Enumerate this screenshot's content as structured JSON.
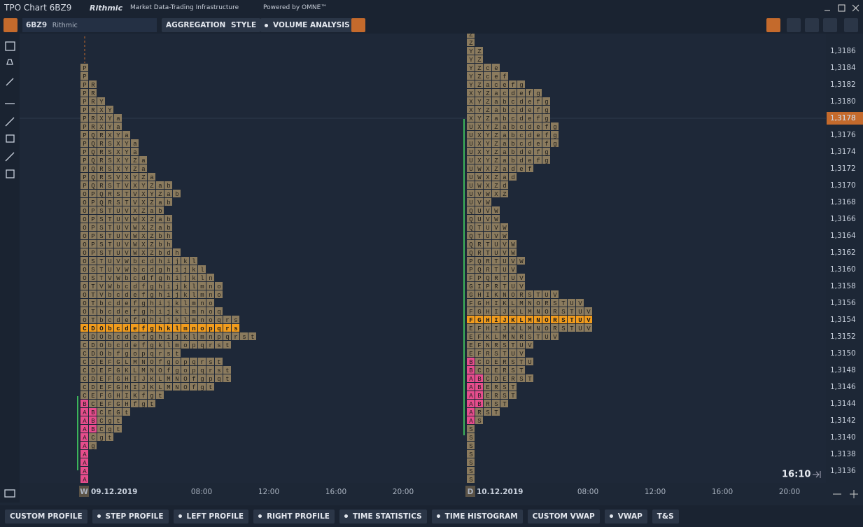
{
  "window": {
    "title": "TPO Chart 6BZ9",
    "brand": "Rithmic",
    "tagline": "Market Data-Trading Infrastructure",
    "powered": "Powered by OMNE™"
  },
  "toolbar": {
    "symbol": "6BZ9",
    "feed": "Rithmic",
    "buttons": [
      "AGGREGATION",
      "STYLE",
      "VOLUME ANALYSIS"
    ]
  },
  "price_axis": {
    "labels": [
      "1,3186",
      "1,3184",
      "1,3182",
      "1,3180",
      "1,3178",
      "1,3176",
      "1,3174",
      "1,3172",
      "1,3170",
      "1,3168",
      "1,3166",
      "1,3164",
      "1,3162",
      "1,3160",
      "1,3158",
      "1,3156",
      "1,3154",
      "1,3152",
      "1,3150",
      "1,3148",
      "1,3146",
      "1,3144",
      "1,3142",
      "1,3140",
      "1,3138",
      "1,3136"
    ],
    "current": "1,3178"
  },
  "time_axis": {
    "labels": [
      "W",
      "09.12.2019",
      "08:00",
      "12:00",
      "16:00",
      "20:00",
      "D",
      "10.12.2019",
      "08:00",
      "12:00",
      "16:00",
      "20:00"
    ]
  },
  "clock": "16:10",
  "profiles": [
    {
      "poc_row": 31,
      "rows": [
        "P",
        "P",
        "PR",
        "PR",
        "PRY",
        "PRXY",
        "PRXYa",
        "PRXYa",
        "PQRXYa",
        "PQRSXYa",
        "PQRSXYa",
        "PQRSXYZa",
        "PQRSXYZa",
        "PQRSVXYZa",
        "PQRSTVXYZab",
        "OPQRSTVXYZab",
        "OPQRSTVXZab",
        "OPSTUVXZab",
        "OPSTUVWXZab",
        "OPSTUVWXZab",
        "OPSTUVWXZbh",
        "OPSTUVWXZbh",
        "OPSTUVWXZbdh",
        "OSTUVWbcdhijkl",
        "OSTUVWbcdghijkl",
        "OSTVWbcdfghijkln",
        "OTVWbcdfghijklmno",
        "OTVbcdefghijklmno",
        "OTbcdefghijklmno",
        "OTbcdefghijklmnoq",
        "OTbcdefghijklmnoqrs",
        "CDObcdefghklmnopqrs",
        "CDObcdefghijklmnpqrst",
        "CDObcdefgklmopqrst",
        "CDObfgopqrst",
        "CDEFGLMNOfgopqrst",
        "CDEFGKLMNOfgopqrst",
        "CDEFGHIJKLMNOfgpqt",
        "CDEFGHIJKLMNOfgt",
        "CEFGHIKfgt",
        "BCEFGHfgt",
        "ABCEGt",
        "ABCgt",
        "ABCgt",
        "ACgt",
        "Ag",
        "A",
        "A",
        "A",
        "A"
      ]
    },
    {
      "poc_row": 34,
      "rows": [
        "Z",
        "Z",
        "YZ",
        "YZ",
        "YZce",
        "YZcef",
        "YZacefg",
        "XYZacdefg",
        "XYZabcdefg",
        "XYZabcdefg",
        "XYZabcdefg",
        "UXYZabcdefg",
        "UXYZabcdefg",
        "UXYZabcdefg",
        "UXYZabdefg",
        "UXYZabdefg",
        "UWXZadef",
        "UWXZad",
        "UWXZd",
        "UVWXZ",
        "UVW",
        "QUVW",
        "QUVW",
        "QTUVW",
        "QTUVW",
        "QRTUVW",
        "QRTUVW",
        "PQRTUVW",
        "PQRTUV",
        "FPQRTUV",
        "GIPRTUV",
        "GHIKNORSTUV",
        "FGHIKLMNORSTUV",
        "FGHIJKLMNORSTUV",
        "FGHIJKLMNORSTUV",
        "EFHIJKLMNORSTUV",
        "EFKLMNRSTUV",
        "EFNRSTUV",
        "EFRSTUV",
        "BCDERSTU",
        "BCDERST",
        "ABCDERST",
        "ABERST",
        "ABERST",
        "ABRST",
        "ARST",
        "AS",
        "S",
        "S",
        "S",
        "S",
        "S",
        "S",
        "S"
      ]
    }
  ],
  "bottom_buttons": [
    {
      "label": "CUSTOM PROFILE",
      "dot": false
    },
    {
      "label": "STEP PROFILE",
      "dot": true
    },
    {
      "label": "LEFT PROFILE",
      "dot": true
    },
    {
      "label": "RIGHT PROFILE",
      "dot": true
    },
    {
      "label": "TIME STATISTICS",
      "dot": true
    },
    {
      "label": "TIME HISTOGRAM",
      "dot": true
    },
    {
      "label": "CUSTOM VWAP",
      "dot": false
    },
    {
      "label": "VWAP",
      "dot": true
    },
    {
      "label": "T&S",
      "dot": false
    }
  ]
}
